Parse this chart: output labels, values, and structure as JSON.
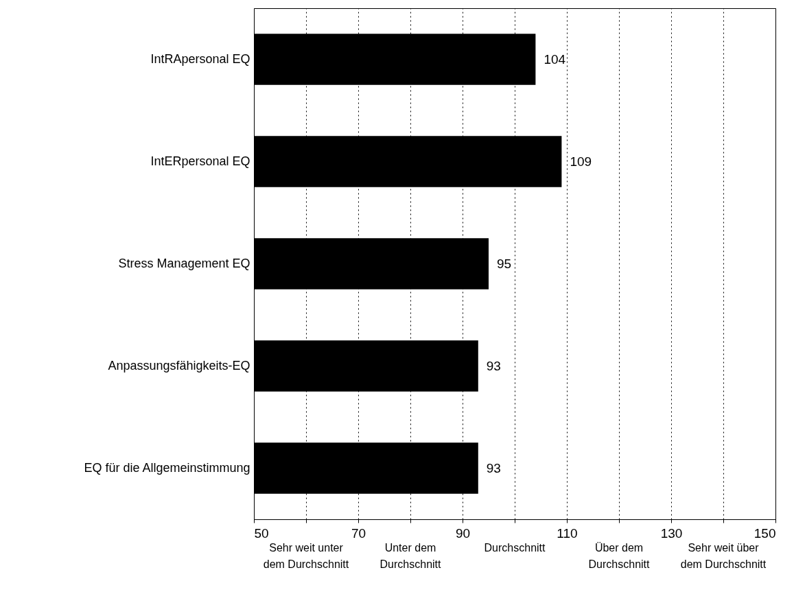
{
  "chart_data": {
    "type": "bar",
    "orientation": "horizontal",
    "categories": [
      "IntRApersonal EQ",
      "IntERpersonal EQ",
      "Stress Management EQ",
      "Anpassungsfähigkeits-EQ",
      "EQ für die Allgemeinstimmung"
    ],
    "values": [
      104,
      109,
      95,
      93,
      93
    ],
    "color": "#000000",
    "data_labels": true,
    "xlim": [
      50,
      150
    ],
    "xticks": [
      50,
      {
        "value": 60,
        "label": null
      },
      70,
      {
        "value": 80,
        "label": null
      },
      90,
      {
        "value": 100,
        "label": null
      },
      110,
      {
        "value": 120,
        "label": null
      },
      130,
      {
        "value": 140,
        "label": null
      },
      150
    ],
    "grid": "x",
    "annotations": [
      "Sehr weit unter dem Durchschnitt",
      "Unter dem Durchschnitt",
      "Durchschnitt",
      "Über dem Durchschnitt",
      "Sehr weit über dem Durchschnitt"
    ]
  }
}
